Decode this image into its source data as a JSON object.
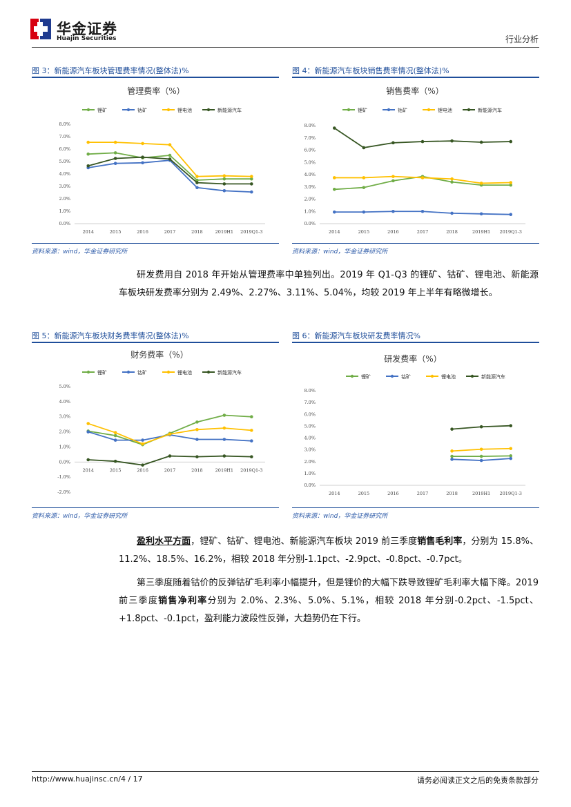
{
  "header": {
    "brand_cn": "华金证券",
    "brand_en": "Huajin Securities",
    "doc_type": "行业分析"
  },
  "figures": [
    {
      "label": "图 3：新能源汽车板块管理费率情况(整体法)%",
      "source": "资料来源：wind，华金证券研究所"
    },
    {
      "label": "图 4：新能源汽车板块销售费率情况(整体法)%",
      "source": "资料来源：wind，华金证券研究所"
    },
    {
      "label": "图 5：新能源汽车板块财务费率情况(整体法)%",
      "source": "资料来源：wind，华金证券研究所"
    },
    {
      "label": "图 6：新能源汽车板块研发费率情况%",
      "source": "资料来源：wind，华金证券研究所"
    }
  ],
  "body": {
    "p1": "研发费用自 2018 年开始从管理费率中单独列出。2019 年 Q1-Q3 的锂矿、钴矿、锂电池、新能源车板块研发费率分别为 2.49%、2.27%、3.11%、5.04%，均较 2019 年上半年有略微增长。",
    "p2_lead": "盈利水平方面",
    "p2_a": "，锂矿、钴矿、锂电池、新能源汽车板块 2019 前三季度",
    "p2_bold": "销售毛利率",
    "p2_b": "，分别为 15.8%、11.2%、18.5%、16.2%，相较 2018 年分别-1.1pct、-2.9pct、-0.8pct、-0.7pct。",
    "p3_a": "第三季度随着钴价的反弹钴矿毛利率小幅提升，但是锂价的大幅下跌导致锂矿毛利率大幅下降。2019 前三季度",
    "p3_bold": "销售净利率",
    "p3_b": "分别为 2.0%、2.3%、5.0%、5.1%，相较 2018 年分别-0.2pct、-1.5pct、+1.8pct、-0.1pct，盈利能力波段性反弹，大趋势仍在下行。"
  },
  "footer": {
    "url": "http://www.huajinsc.cn/4 / 17",
    "disclaimer": "请务必阅读正文之后的免责条款部分"
  },
  "colors": {
    "lithium_mine": "#70ad47",
    "cobalt_mine": "#4472c4",
    "lithium_battery": "#ffc000",
    "nev": "#375623",
    "accent_blue": "#1f4e9a",
    "logo_red": "#d7000f",
    "logo_navy": "#1f3b8f"
  },
  "chart_data": [
    {
      "type": "line",
      "title": "管理费率（%）",
      "x": [
        "2014",
        "2015",
        "2016",
        "2017",
        "2018",
        "2019H1",
        "2019Q1-3"
      ],
      "yticks": [
        "0.0%",
        "1.0%",
        "2.0%",
        "3.0%",
        "4.0%",
        "5.0%",
        "6.0%",
        "7.0%",
        "8.0%"
      ],
      "ylim": [
        0,
        8
      ],
      "series": [
        {
          "name": "锂矿",
          "values": [
            5.6,
            5.7,
            5.3,
            5.5,
            3.5,
            3.6,
            3.6
          ]
        },
        {
          "name": "钴矿",
          "values": [
            4.5,
            4.85,
            4.9,
            5.1,
            2.9,
            2.65,
            2.55
          ]
        },
        {
          "name": "锂电池",
          "values": [
            6.55,
            6.55,
            6.45,
            6.35,
            3.8,
            3.85,
            3.8
          ]
        },
        {
          "name": "新能源汽车",
          "values": [
            4.65,
            5.25,
            5.35,
            5.2,
            3.3,
            3.2,
            3.2
          ]
        }
      ]
    },
    {
      "type": "line",
      "title": "销售费率（%）",
      "x": [
        "2014",
        "2015",
        "2016",
        "2017",
        "2018",
        "2019H1",
        "2019Q1-3"
      ],
      "yticks": [
        "0.0%",
        "1.0%",
        "2.0%",
        "3.0%",
        "4.0%",
        "5.0%",
        "6.0%",
        "7.0%",
        "8.0%"
      ],
      "ylim": [
        0,
        8
      ],
      "series": [
        {
          "name": "锂矿",
          "values": [
            2.8,
            2.95,
            3.5,
            3.85,
            3.4,
            3.15,
            3.15
          ]
        },
        {
          "name": "钴矿",
          "values": [
            0.95,
            0.95,
            1.0,
            1.0,
            0.85,
            0.8,
            0.75
          ]
        },
        {
          "name": "锂电池",
          "values": [
            3.75,
            3.75,
            3.85,
            3.75,
            3.65,
            3.3,
            3.35
          ]
        },
        {
          "name": "新能源汽车",
          "values": [
            7.8,
            6.2,
            6.6,
            6.7,
            6.75,
            6.65,
            6.7
          ]
        }
      ]
    },
    {
      "type": "line",
      "title": "财务费率（%）",
      "x": [
        "2014",
        "2015",
        "2016",
        "2017",
        "2018",
        "2019H1",
        "2019Q1-3"
      ],
      "yticks": [
        "-2.0%",
        "-1.0%",
        "0.0%",
        "1.0%",
        "2.0%",
        "3.0%",
        "4.0%",
        "5.0%"
      ],
      "ylim": [
        -2,
        5
      ],
      "series": [
        {
          "name": "锂矿",
          "values": [
            2.05,
            1.75,
            1.15,
            1.9,
            2.65,
            3.1,
            3.0
          ]
        },
        {
          "name": "钴矿",
          "values": [
            2.0,
            1.45,
            1.45,
            1.8,
            1.5,
            1.5,
            1.4
          ]
        },
        {
          "name": "锂电池",
          "values": [
            2.55,
            1.95,
            1.2,
            1.85,
            2.15,
            2.25,
            2.1
          ]
        },
        {
          "name": "新能源汽车",
          "values": [
            0.15,
            0.05,
            -0.2,
            0.4,
            0.35,
            0.4,
            0.35
          ]
        }
      ]
    },
    {
      "type": "line",
      "title": "研发费率（%）",
      "x": [
        "2014",
        "2015",
        "2016",
        "2017",
        "2018",
        "2019H1",
        "2019Q1-3"
      ],
      "yticks": [
        "0.0%",
        "1.0%",
        "2.0%",
        "3.0%",
        "4.0%",
        "5.0%",
        "6.0%",
        "7.0%",
        "8.0%"
      ],
      "ylim": [
        0,
        8
      ],
      "series": [
        {
          "name": "锂矿",
          "values": [
            null,
            null,
            null,
            null,
            2.45,
            2.45,
            2.49
          ]
        },
        {
          "name": "钴矿",
          "values": [
            null,
            null,
            null,
            null,
            2.2,
            2.1,
            2.27
          ]
        },
        {
          "name": "锂电池",
          "values": [
            null,
            null,
            null,
            null,
            2.9,
            3.05,
            3.11
          ]
        },
        {
          "name": "新能源汽车",
          "values": [
            null,
            null,
            null,
            null,
            4.75,
            4.95,
            5.04
          ]
        }
      ]
    }
  ]
}
